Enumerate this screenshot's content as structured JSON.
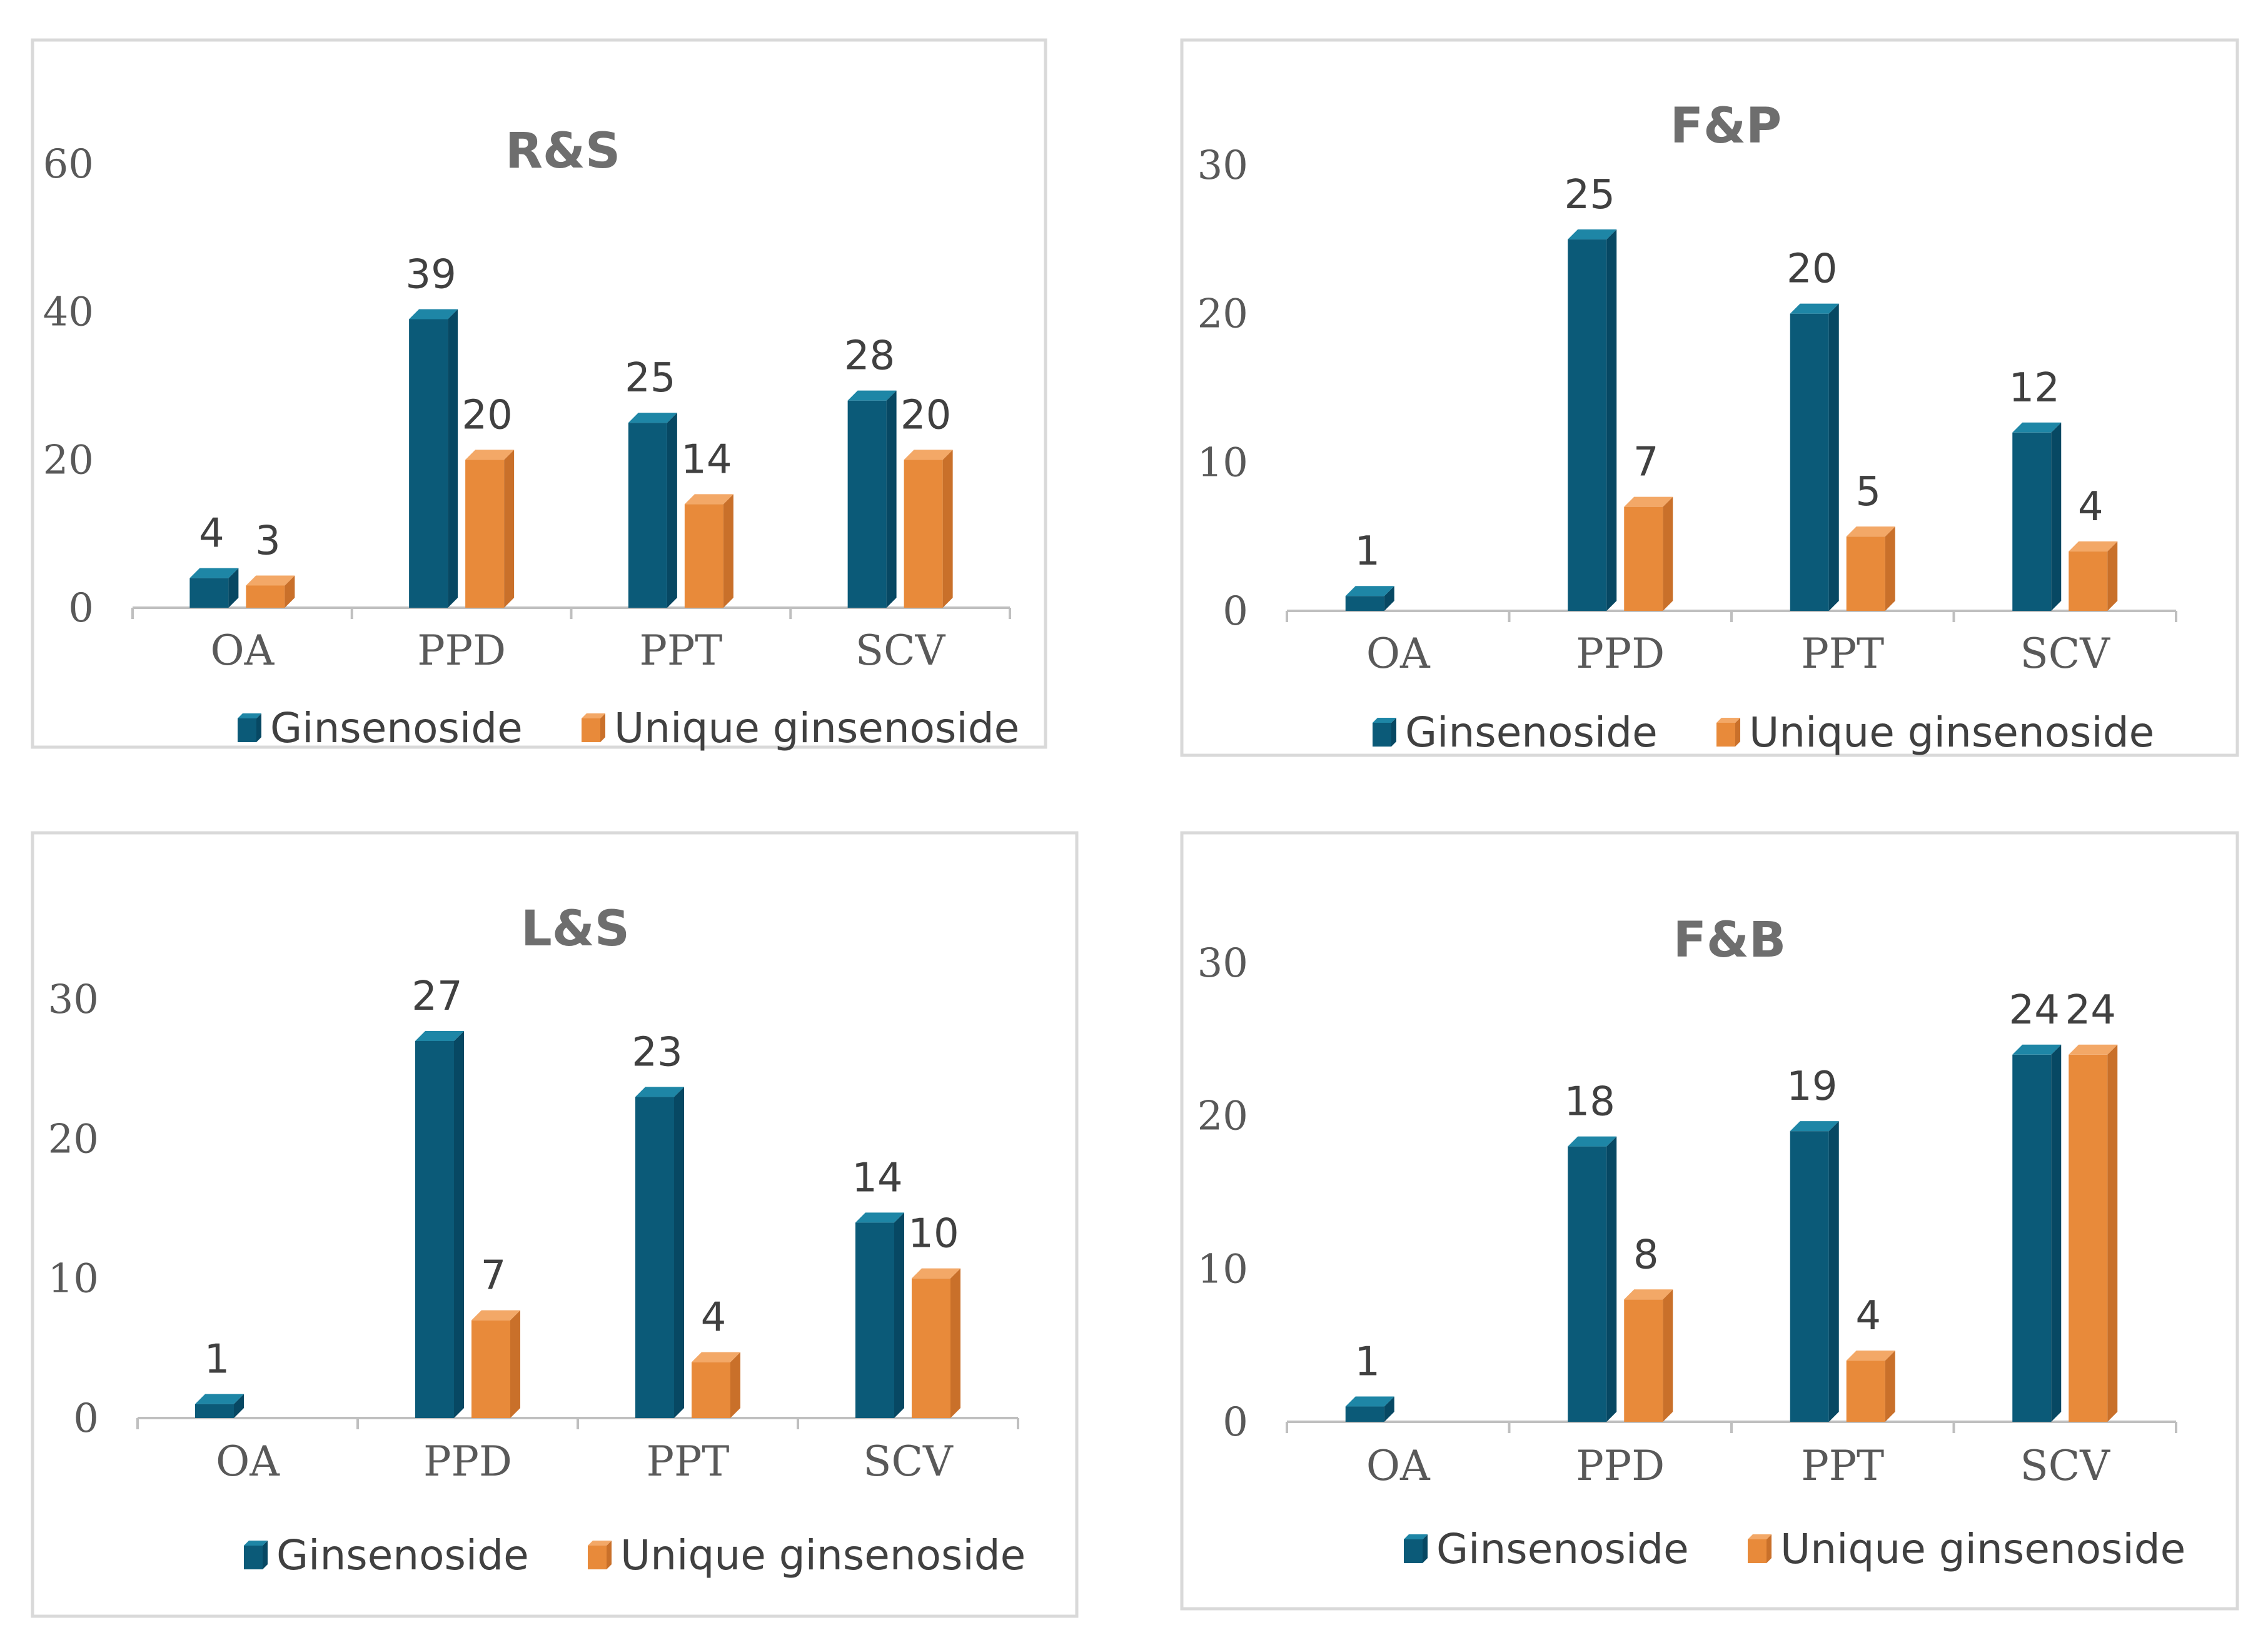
{
  "colors": {
    "ginsenoside_front": "#0b5a78",
    "ginsenoside_side": "#074863",
    "ginsenoside_top": "#1e86a6",
    "unique_front": "#e88a3a",
    "unique_side": "#c9702a",
    "unique_top": "#f3a867",
    "axis": "#bfbfbf",
    "frame": "#d9d9d9"
  },
  "chart_data": [
    {
      "type": "bar",
      "title": "R&S",
      "categories": [
        "OA",
        "PPD",
        "PPT",
        "SCV"
      ],
      "ylim": [
        0,
        60
      ],
      "yticks": [
        "0",
        "20",
        "40",
        "60"
      ],
      "legend_position": "bottom",
      "series": [
        {
          "name": "Ginsenoside",
          "values": [
            4,
            39,
            25,
            28
          ],
          "labels": [
            "4",
            "39",
            "25",
            "28"
          ]
        },
        {
          "name": "Unique ginsenoside",
          "values": [
            3,
            20,
            14,
            20
          ],
          "labels": [
            "3",
            "20",
            "14",
            "20"
          ]
        }
      ]
    },
    {
      "type": "bar",
      "title": "F&P",
      "categories": [
        "OA",
        "PPD",
        "PPT",
        "SCV"
      ],
      "ylim": [
        0,
        30
      ],
      "yticks": [
        "0",
        "10",
        "20",
        "30"
      ],
      "legend_position": "bottom",
      "series": [
        {
          "name": "Ginsenoside",
          "values": [
            1,
            25,
            20,
            12
          ],
          "labels": [
            "1",
            "25",
            "20",
            "12"
          ]
        },
        {
          "name": "Unique ginsenoside",
          "values": [
            0,
            7,
            5,
            4
          ],
          "labels": [
            "",
            "7",
            "5",
            "4"
          ]
        }
      ]
    },
    {
      "type": "bar",
      "title": "L&S",
      "categories": [
        "OA",
        "PPD",
        "PPT",
        "SCV"
      ],
      "ylim": [
        0,
        30
      ],
      "yticks": [
        "0",
        "10",
        "20",
        "30"
      ],
      "legend_position": "bottom",
      "series": [
        {
          "name": "Ginsenoside",
          "values": [
            1,
            27,
            23,
            14
          ],
          "labels": [
            "1",
            "27",
            "23",
            "14"
          ]
        },
        {
          "name": "Unique ginsenoside",
          "values": [
            0,
            7,
            4,
            10
          ],
          "labels": [
            "",
            "7",
            "4",
            "10"
          ]
        }
      ]
    },
    {
      "type": "bar",
      "title": "F&B",
      "categories": [
        "OA",
        "PPD",
        "PPT",
        "SCV"
      ],
      "ylim": [
        0,
        30
      ],
      "yticks": [
        "0",
        "10",
        "20",
        "30"
      ],
      "legend_position": "bottom",
      "series": [
        {
          "name": "Ginsenoside",
          "values": [
            1,
            18,
            19,
            24
          ],
          "labels": [
            "1",
            "18",
            "19",
            "24"
          ]
        },
        {
          "name": "Unique ginsenoside",
          "values": [
            0,
            8,
            4,
            24
          ],
          "labels": [
            "",
            "8",
            "4",
            "24"
          ]
        }
      ]
    }
  ]
}
